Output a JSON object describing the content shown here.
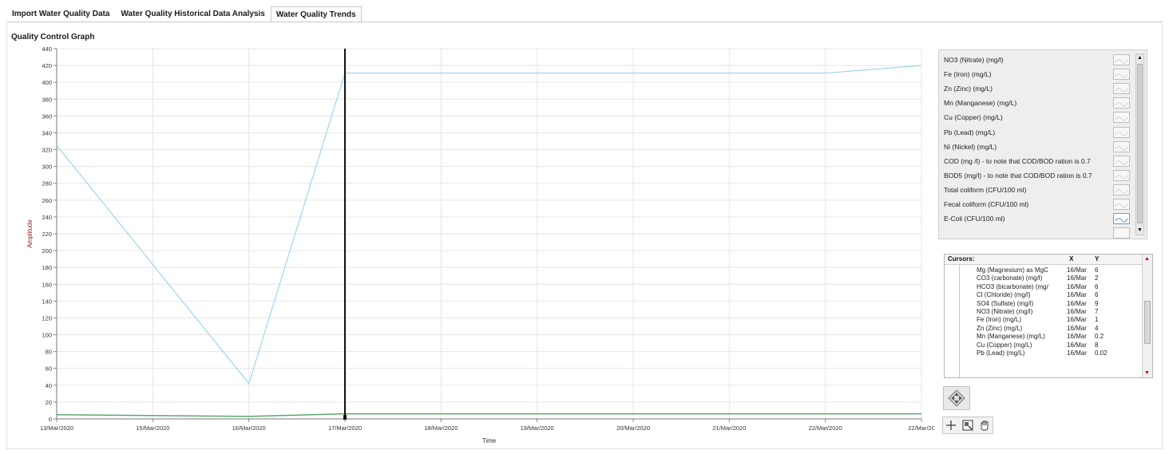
{
  "tabs": [
    {
      "label": "Import Water Quality Data",
      "active": false
    },
    {
      "label": "Water Quality Historical Data Analysis",
      "active": false
    },
    {
      "label": "Water Quality Trends",
      "active": true
    }
  ],
  "graph_title": "Quality Control Graph",
  "chart_data": {
    "type": "line",
    "xlabel": "Time",
    "ylabel": "Amplitude",
    "ylim": [
      0,
      440
    ],
    "yticks": [
      0,
      20,
      40,
      60,
      80,
      100,
      120,
      140,
      160,
      180,
      200,
      220,
      240,
      260,
      280,
      300,
      320,
      340,
      360,
      380,
      400,
      420,
      440
    ],
    "xlim": [
      "13/Mar/2020",
      "22/Mar/2020"
    ],
    "xtick_labels": [
      "13/Mar/2020",
      "15/Mar/2020",
      "16/Mar/2020",
      "17/Mar/2020",
      "18/Mar/2020",
      "19/Mar/2020",
      "20/Mar/2020",
      "21/Mar/2020",
      "22/Mar/2020",
      "22/Mar/20"
    ],
    "grid": true,
    "series": [
      {
        "color": "#8fcde9",
        "points": [
          [
            "13/Mar/2020",
            325
          ],
          [
            "16/Mar/2020",
            42
          ],
          [
            "17/Mar/2020",
            411
          ],
          [
            "22/Mar/2020",
            411
          ],
          [
            "22/Mar/2020",
            420
          ]
        ]
      },
      {
        "color": "#5aa870",
        "points": [
          [
            "13/Mar/2020",
            5
          ],
          [
            "16/Mar/2020",
            3
          ],
          [
            "17/Mar/2020",
            6
          ],
          [
            "22/Mar/2020",
            6
          ],
          [
            "22/Mar/2020",
            6
          ]
        ]
      }
    ],
    "cursor_x": "17/Mar/2020"
  },
  "legend": {
    "items": [
      "NO3 (Nitrate) (mg/l)",
      "Fe (Iron) (mg/L)",
      "Zn (Zinc) (mg/L)",
      "Mn (Manganese) (mg/L)",
      "Cu (Copper) (mg/L)",
      "Pb (Lead) (mg/L)",
      "Ni (Nickel) (mg/L)",
      "COD (mg /l) - to note that COD/BOD ration is 0.7",
      "BOD5 (mg/l) - to note that COD/BOD ration is 0.7",
      "Total coliform (CFU/100 ml)",
      "Fecal coliform (CFU/100 ml)",
      "E-Coli (CFU/100 ml)"
    ],
    "selected": "E-Coli (CFU/100 ml)"
  },
  "cursors": {
    "header_name": "Cursors:",
    "header_x": "X",
    "header_y": "Y",
    "rows": [
      {
        "name": "Mg (Magnesium) as MgC",
        "x": "16/Mar",
        "y": "6"
      },
      {
        "name": "CO3 (carbonate) (mg/l)",
        "x": "16/Mar",
        "y": "2"
      },
      {
        "name": "HCO3 (bicarbonate) (mg/",
        "x": "16/Mar",
        "y": "6"
      },
      {
        "name": "Cl (Chloride) (mg/l)",
        "x": "16/Mar",
        "y": "6"
      },
      {
        "name": "SO4 (Sulfate) (mg/l)",
        "x": "16/Mar",
        "y": "9"
      },
      {
        "name": "NO3 (Nitrate) (mg/l)",
        "x": "16/Mar",
        "y": "7"
      },
      {
        "name": "Fe (Iron) (mg/L)",
        "x": "16/Mar",
        "y": "1"
      },
      {
        "name": "Zn (Zinc) (mg/L)",
        "x": "16/Mar",
        "y": "4"
      },
      {
        "name": "Mn (Manganese) (mg/L)",
        "x": "16/Mar",
        "y": "0.2"
      },
      {
        "name": "Cu (Copper) (mg/L)",
        "x": "16/Mar",
        "y": "8"
      },
      {
        "name": "Pb (Lead) (mg/L)",
        "x": "16/Mar",
        "y": "0.02"
      }
    ]
  },
  "icons": {
    "nav": "cursor-move-icon",
    "tools": [
      "crosshair-icon",
      "zoom-icon",
      "pan-hand-icon"
    ]
  }
}
